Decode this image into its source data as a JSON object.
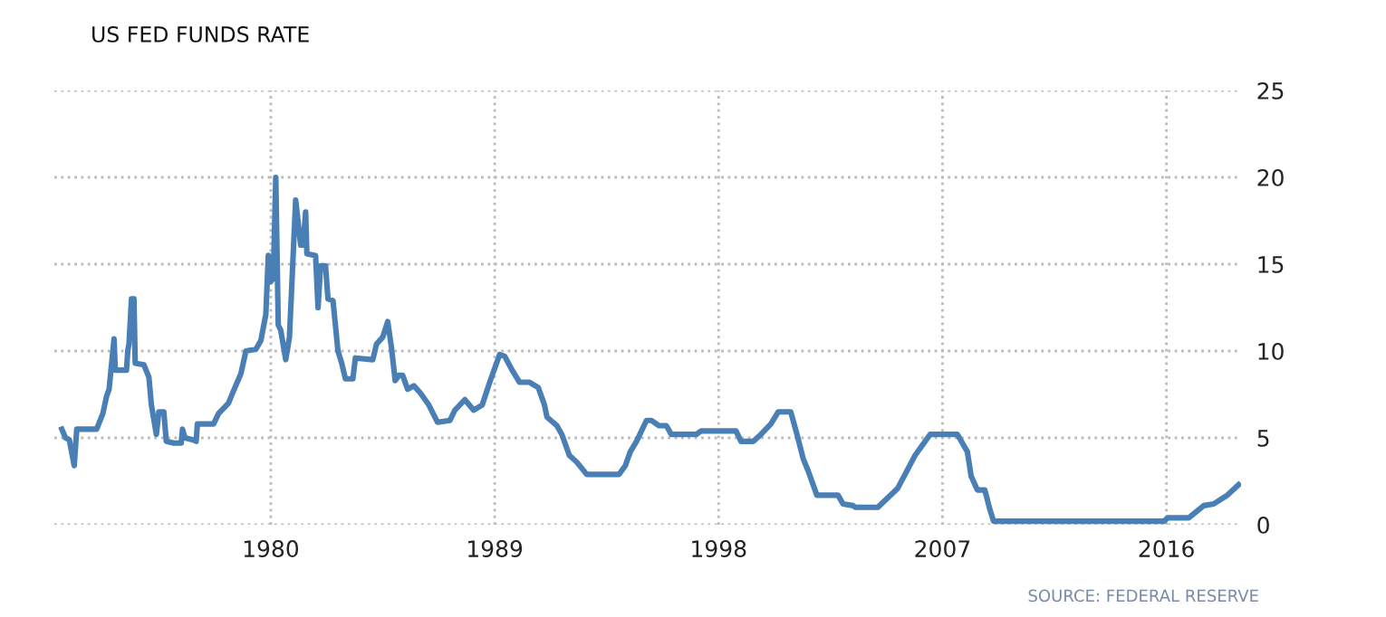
{
  "chart_data": {
    "type": "line",
    "title": "US FED FUNDS RATE",
    "annotations": [
      "SOURCE: FEDERAL RESERVE"
    ],
    "x": [
      1971.6,
      1971.75,
      1971.9,
      1972.1,
      1972.2,
      1973.0,
      1973.25,
      1973.4,
      1973.5,
      1973.7,
      1973.75,
      1974.2,
      1974.25,
      1974.3,
      1974.4,
      1974.5,
      1974.55,
      1974.9,
      1975.1,
      1975.2,
      1975.4,
      1975.5,
      1975.7,
      1975.8,
      1976.1,
      1976.4,
      1976.45,
      1976.55,
      1976.85,
      1977.0,
      1977.05,
      1977.7,
      1977.9,
      1978.3,
      1978.5,
      1978.8,
      1979.0,
      1979.4,
      1979.6,
      1979.8,
      1979.9,
      1980.0,
      1980.1,
      1980.2,
      1980.3,
      1980.4,
      1980.6,
      1980.75,
      1981.0,
      1981.2,
      1981.3,
      1981.4,
      1981.45,
      1981.8,
      1981.9,
      1982.0,
      1982.2,
      1982.3,
      1982.5,
      1982.7,
      1982.85,
      1983.0,
      1983.3,
      1983.4,
      1984.1,
      1984.25,
      1984.5,
      1984.7,
      1984.85,
      1985.0,
      1985.15,
      1985.3,
      1985.5,
      1985.75,
      1986.0,
      1986.35,
      1986.7,
      1987.2,
      1987.4,
      1987.8,
      1988.15,
      1988.5,
      1988.8,
      1989.2,
      1989.4,
      1989.7,
      1990.0,
      1990.4,
      1990.75,
      1991.0,
      1991.1,
      1991.5,
      1991.7,
      1992.0,
      1992.3,
      1992.7,
      1994.0,
      1994.25,
      1994.45,
      1994.7,
      1995.1,
      1995.3,
      1995.6,
      1995.9,
      1996.1,
      1997.1,
      1997.3,
      1998.7,
      1998.9,
      1999.4,
      1999.7,
      2000.1,
      2000.4,
      2000.9,
      2001.15,
      2001.4,
      2001.6,
      2001.95,
      2002.8,
      2003.0,
      2003.4,
      2003.5,
      2004.4,
      2005.2,
      2005.9,
      2006.5,
      2007.6,
      2008.0,
      2008.15,
      2008.4,
      2008.7,
      2008.9,
      2009.05,
      2015.9,
      2016.05,
      2016.9,
      2017.5,
      2017.9,
      2018.45,
      2018.9
    ],
    "series": [
      {
        "color": "#4a7fb5",
        "values": [
          5.5,
          5.0,
          4.9,
          3.4,
          5.5,
          5.5,
          6.4,
          7.4,
          7.8,
          10.7,
          8.9,
          8.9,
          10.0,
          10.4,
          13.0,
          13.0,
          9.3,
          9.2,
          8.5,
          6.9,
          5.2,
          6.5,
          6.5,
          4.8,
          4.7,
          4.7,
          5.5,
          5.0,
          4.9,
          4.8,
          5.8,
          5.8,
          6.4,
          7.0,
          7.7,
          8.7,
          10.0,
          10.1,
          10.6,
          12.1,
          15.5,
          14.0,
          14.2,
          20.0,
          11.5,
          11.2,
          9.5,
          10.8,
          18.7,
          16.1,
          16.1,
          18.0,
          15.6,
          15.5,
          12.5,
          14.9,
          14.9,
          13.0,
          12.9,
          10.0,
          9.3,
          8.4,
          8.4,
          9.6,
          9.5,
          10.4,
          10.8,
          11.7,
          10.2,
          8.3,
          8.6,
          8.6,
          7.8,
          8.0,
          7.6,
          6.9,
          5.9,
          6.0,
          6.6,
          7.2,
          6.6,
          6.9,
          8.2,
          9.8,
          9.7,
          8.9,
          8.2,
          8.2,
          7.9,
          6.9,
          6.2,
          5.7,
          5.2,
          4.0,
          3.6,
          2.9,
          2.9,
          3.4,
          4.2,
          4.8,
          6.0,
          6.0,
          5.7,
          5.7,
          5.2,
          5.2,
          5.4,
          5.4,
          4.8,
          4.8,
          5.2,
          5.8,
          6.5,
          6.5,
          5.2,
          3.8,
          3.1,
          1.7,
          1.7,
          1.2,
          1.1,
          1.0,
          1.0,
          2.1,
          4.0,
          5.2,
          5.2,
          4.2,
          2.8,
          2.0,
          2.0,
          0.9,
          0.2,
          0.2,
          0.4,
          0.4,
          1.1,
          1.2,
          1.7,
          2.3
        ]
      }
    ],
    "xlim": [
      1971.3,
      2019.0
    ],
    "ylim": [
      0,
      25
    ],
    "xticks": [
      1980,
      1989,
      1998,
      2007,
      2016
    ],
    "yticks": [
      0,
      5,
      10,
      15,
      20,
      25
    ],
    "grid": true,
    "marker": "none",
    "line_style": "solid",
    "legend": false
  }
}
